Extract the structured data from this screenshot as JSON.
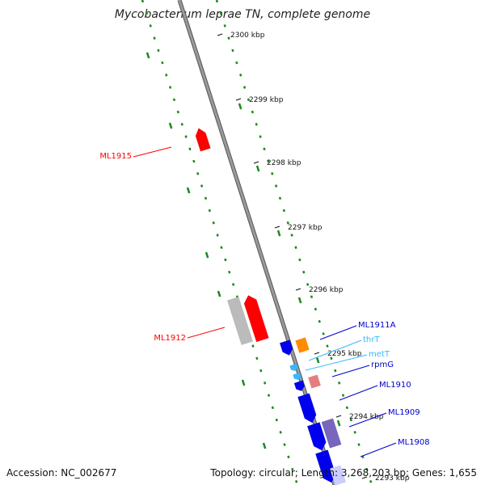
{
  "title": "Mycobacterium leprae TN, complete genome",
  "accession_label": "Accession: NC_002677",
  "stats_label": "Topology: circular; Length: 3,268,203 bp; Genes: 1,655",
  "ticks": [
    {
      "label": "2300 kbp"
    },
    {
      "label": "2299 kbp"
    },
    {
      "label": "2298 kbp"
    },
    {
      "label": "2297 kbp"
    },
    {
      "label": "2296 kbp"
    },
    {
      "label": "2295 kbp"
    },
    {
      "label": "2294 kbp"
    },
    {
      "label": "2293 kbp"
    }
  ],
  "genes": [
    {
      "label": "ML1915",
      "color": "#ff0000"
    },
    {
      "label": "ML1912",
      "color": "#ff0000"
    },
    {
      "label": "ML1911A",
      "color": "#0000cc"
    },
    {
      "label": "thrT",
      "color": "#33bbff"
    },
    {
      "label": "metT",
      "color": "#33bbff"
    },
    {
      "label": "rpmG",
      "color": "#0000cc"
    },
    {
      "label": "ML1910",
      "color": "#0000cc"
    },
    {
      "label": "ML1909",
      "color": "#0000cc"
    },
    {
      "label": "ML1908",
      "color": "#0000cc"
    }
  ],
  "colors": {
    "backbone": "#888888",
    "gc_track": "#1a8a1a",
    "cds_forward": "#ff0000",
    "cds_reverse": "#0000ee",
    "trna": "#33bbff",
    "rrna": "#ff8c00",
    "pseudogene": "#bbbbbb",
    "other": "#e57f7f",
    "misc": "#7766bb"
  }
}
